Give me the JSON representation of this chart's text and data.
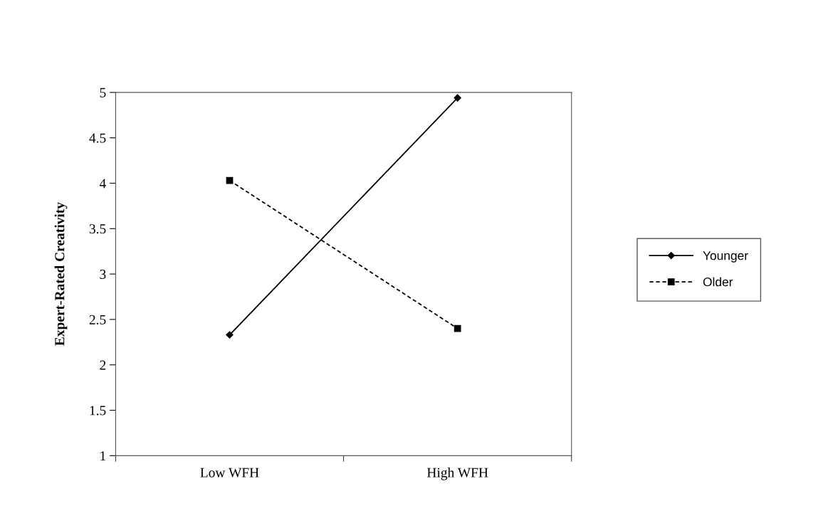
{
  "chart_data": {
    "type": "line",
    "ylabel": "Expert-Rated Creativity",
    "categories": [
      "Low WFH",
      "High WFH"
    ],
    "series": [
      {
        "name": "Younger",
        "color": "#000000",
        "values": [
          2.33,
          4.94
        ],
        "marker": "diamond",
        "line_style": "solid"
      },
      {
        "name": "Older",
        "color": "#000000",
        "values": [
          4.03,
          2.4
        ],
        "marker": "square",
        "line_style": "dashed"
      }
    ],
    "ylim": [
      1,
      5
    ],
    "yticks": [
      1,
      1.5,
      2,
      2.5,
      3,
      3.5,
      4,
      4.5,
      5
    ],
    "grid": false,
    "legend": "right"
  }
}
